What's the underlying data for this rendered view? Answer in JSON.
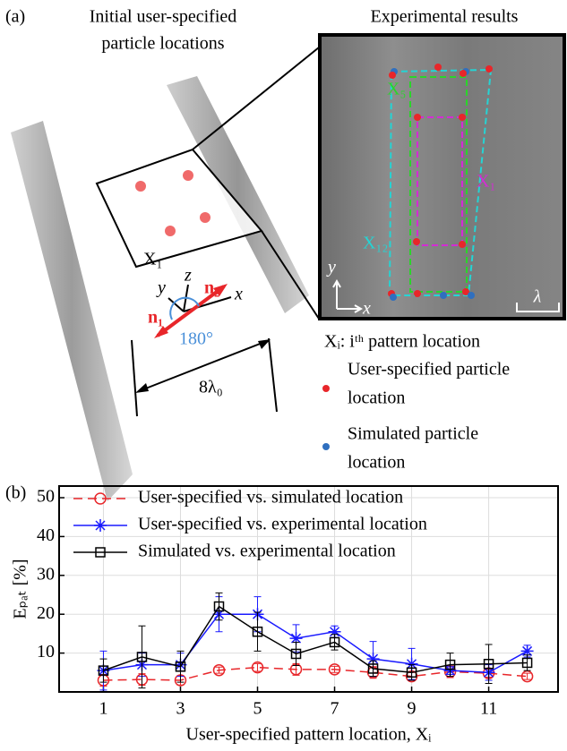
{
  "figure": {
    "panel_a": {
      "label": "(a)",
      "title_left": [
        "Initial user-specified",
        "particle locations"
      ],
      "title_right": "Experimental results",
      "quad_label": "X₁",
      "n1": "n₁",
      "n2": "n₂",
      "axis_x": "x",
      "axis_y": "y",
      "axis_z": "z",
      "angle": "180°",
      "distance": "8λ₀",
      "image_labels": {
        "x5": "X₅",
        "x1": "X₁",
        "x12": "X₁₂",
        "axis_y": "y",
        "axis_x": "x",
        "scale": "λ"
      },
      "legend": {
        "pattern": "Xᵢ: iᵗʰ pattern location",
        "user": [
          "User-specified particle",
          "location"
        ],
        "simulated": [
          "Simulated particle",
          "location"
        ],
        "user_color": "#e8262a",
        "simulated_color": "#2f6fbf"
      }
    },
    "panel_b_label": "(b)"
  },
  "chart_data": {
    "type": "line",
    "x_label": "User-specified pattern location, Xᵢ",
    "y_label": "Eₚₐₜ [%]",
    "x": [
      1,
      2,
      3,
      4,
      5,
      6,
      7,
      8,
      9,
      10,
      11,
      12
    ],
    "xlim": [
      -0.15,
      12.8
    ],
    "xticks": [
      1,
      3,
      5,
      7,
      9,
      11
    ],
    "ylim": [
      0,
      53
    ],
    "yticks": [
      10,
      20,
      30,
      40,
      50
    ],
    "grid": true,
    "legend": "upper left",
    "series": [
      {
        "name": "User-specified vs. simulated location",
        "color": "#e8262a",
        "marker": "circle",
        "dashed": true,
        "values": [
          3.0,
          3.2,
          3.0,
          5.6,
          6.3,
          5.8,
          5.8,
          5.0,
          4.0,
          5.2,
          4.8,
          4.0
        ],
        "errors": [
          1.5,
          1.5,
          1.2,
          0.8,
          1.0,
          1.5,
          0.8,
          1.5,
          1.0,
          1.5,
          1.0,
          0.8
        ]
      },
      {
        "name": "User-specified vs. experimental location",
        "color": "#1a1aff",
        "marker": "asterisk",
        "dashed": false,
        "values": [
          5.5,
          7.0,
          7.0,
          20.0,
          20.0,
          13.8,
          15.5,
          8.5,
          7.2,
          5.5,
          5.0,
          10.5
        ],
        "errors": [
          5.0,
          3.0,
          3.0,
          4.5,
          4.5,
          3.5,
          1.5,
          4.5,
          4.0,
          1.0,
          2.0,
          1.5
        ]
      },
      {
        "name": "Simulated vs. experimental location",
        "color": "#000000",
        "marker": "square",
        "dashed": false,
        "values": [
          5.5,
          9.0,
          6.5,
          22.0,
          15.5,
          9.8,
          12.8,
          6.0,
          5.0,
          7.0,
          7.2,
          7.5
        ],
        "errors": [
          3.0,
          8.0,
          4.0,
          3.5,
          5.0,
          3.0,
          2.0,
          2.0,
          2.0,
          3.0,
          5.0,
          2.0
        ]
      }
    ]
  }
}
